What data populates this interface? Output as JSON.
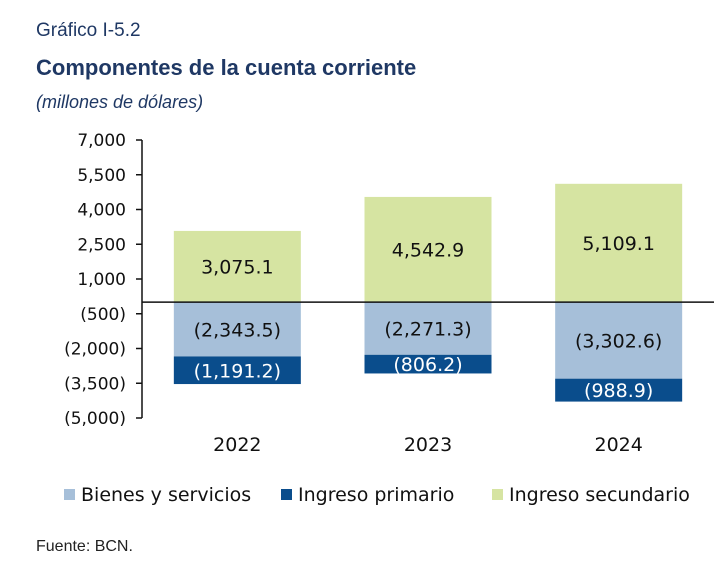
{
  "header": {
    "kicker": "Gráfico I-5.2",
    "title": "Componentes de la cuenta corriente",
    "units": "(millones de dólares)"
  },
  "source": "Fuente: BCN.",
  "colors": {
    "bienes": "#a6bfd9",
    "primario": "#0a4d8c",
    "secundario": "#d6e4a2",
    "axis": "#111111",
    "label_dark": "#111111",
    "label_light": "#ffffff"
  },
  "chart_data": {
    "type": "bar",
    "stacked": true,
    "title": "Componentes de la cuenta corriente",
    "xlabel": "",
    "ylabel": "",
    "categories": [
      "2022",
      "2023",
      "2024"
    ],
    "series": [
      {
        "name": "Bienes y servicios",
        "values": [
          -2343.5,
          -2271.3,
          -3302.6
        ],
        "labels": [
          "(2,343.5)",
          "(2,271.3)",
          "(3,302.6)"
        ]
      },
      {
        "name": "Ingreso primario",
        "values": [
          -1191.2,
          -806.2,
          -988.9
        ],
        "labels": [
          "(1,191.2)",
          "(806.2)",
          "(988.9)"
        ]
      },
      {
        "name": "Ingreso secundario",
        "values": [
          3075.1,
          4542.9,
          5109.1
        ],
        "labels": [
          "3,075.1",
          "4,542.9",
          "5,109.1"
        ]
      }
    ],
    "yticks": [
      7000,
      5500,
      4000,
      2500,
      1000,
      -500,
      -2000,
      -3500,
      -5000
    ],
    "ytick_labels": [
      "7,000",
      "5,500",
      "4,000",
      "2,500",
      "1,000",
      "(500)",
      "(2,000)",
      "(3,500)",
      "(5,000)"
    ],
    "ylim": [
      -5000,
      7000
    ],
    "grid": false,
    "legend_position": "bottom"
  }
}
